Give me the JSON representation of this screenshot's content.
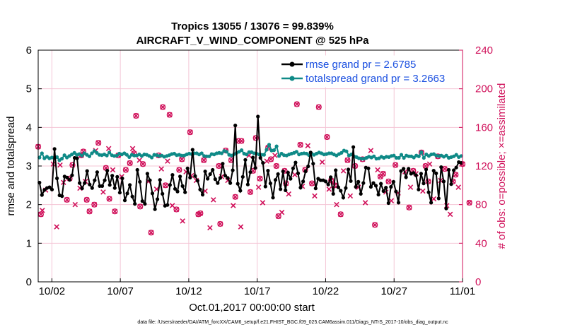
{
  "chart_data": {
    "type": "line",
    "title_line1": "Tropics 13055 / 13076 = 99.839%",
    "title_line2": "AIRCRAFT_V_WIND_COMPONENT @ 525 hPa",
    "xlabel": "Oct.01,2017 00:00:00 start",
    "ylabel_left": "rmse and totalspread",
    "ylabel_right": "# of obs: o=possible; ×=assimilated",
    "footer": "data file: /Users/raeder/DAI/ATM_forcXX/CAM6_setup/f.e21.FHIST_BGC.f09_025.CAM6assim.011/Diags_NTrS_2017-10/obs_diag_output.nc",
    "x_range_days": [
      0,
      31
    ],
    "x_ticks": [
      {
        "day": 1,
        "label": "10/02"
      },
      {
        "day": 6,
        "label": "10/07"
      },
      {
        "day": 11,
        "label": "10/12"
      },
      {
        "day": 16,
        "label": "10/17"
      },
      {
        "day": 21,
        "label": "10/22"
      },
      {
        "day": 26,
        "label": "10/27"
      },
      {
        "day": 31,
        "label": "11/01"
      }
    ],
    "ylim_left": [
      0,
      6
    ],
    "yticks_left": [
      "0",
      "1",
      "2",
      "3",
      "4",
      "5",
      "6"
    ],
    "ylim_right": [
      0,
      240
    ],
    "yticks_right": [
      "0",
      "40",
      "80",
      "120",
      "160",
      "200",
      "240"
    ],
    "colors": {
      "rmse": "#000000",
      "spread": "#0f8a87",
      "obs": "#d0105a",
      "legend_text": "#1a4fe0",
      "grid": "#f4c6d6"
    },
    "series": [
      {
        "name": "rmse grand pr = 2.6785",
        "values": [
          2.57,
          2.25,
          2.38,
          2.43,
          2.45,
          2.39,
          3.44,
          2.68,
          2.24,
          2.22,
          2.73,
          2.7,
          2.64,
          2.76,
          3.21,
          3.2,
          2.56,
          2.42,
          2.56,
          2.87,
          2.52,
          2.43,
          2.63,
          2.84,
          2.48,
          2.48,
          2.63,
          2.88,
          2.51,
          2.75,
          2.43,
          2.72,
          2.31,
          2.68,
          2.11,
          2.29,
          2.51,
          2.21,
          2.02,
          2.9,
          2.59,
          2.09,
          2.02,
          2.8,
          2.63,
          2.29,
          1.88,
          2.14,
          2.64,
          2.28,
          1.97,
          1.99,
          2.51,
          2.77,
          2.41,
          2.34,
          2.73,
          2.48,
          2.32,
          2.94,
          2.7,
          3.42,
          2.74,
          2.62,
          2.39,
          2.26,
          2.86,
          2.67,
          2.79,
          2.9,
          2.66,
          2.56,
          2.69,
          3.06,
          2.75,
          2.69,
          2.56,
          2.89,
          4.05,
          2.54,
          2.36,
          2.72,
          3.16,
          2.52,
          2.84,
          3.22,
          2.95,
          4.28,
          3.21,
          3.08,
          2.47,
          2.88,
          2.55,
          2.18,
          2.64,
          2.79,
          2.4,
          2.86,
          2.37,
          2.83,
          2.67,
          2.94,
          3.09,
          2.81,
          2.44,
          2.6,
          2.86,
          2.99,
          3.35,
          3.06,
          2.42,
          2.67,
          2.63,
          2.63,
          2.6,
          2.52,
          2.71,
          2.28,
          2.89,
          2.45,
          2.36,
          2.18,
          2.43,
          2.91,
          2.61,
          3.49,
          2.46,
          2.59,
          2.28,
          2.56,
          2.96,
          2.94,
          2.46,
          2.56,
          2.49,
          2.26,
          2.54,
          2.35,
          2.44,
          2.04,
          2.46,
          2.59,
          2.34,
          2.05,
          2.87,
          2.93,
          2.71,
          2.93,
          2.8,
          2.82,
          2.76,
          2.39,
          2.8,
          2.55,
          2.91,
          2.32,
          2.05,
          2.88,
          2.81,
          2.16,
          2.97,
          2.6,
          1.9,
          2.9,
          2.53,
          2.89,
          2.96,
          3.1,
          3.08
        ]
      },
      {
        "name": "totalspread grand pr = 3.2663",
        "values": [
          3.22,
          3.33,
          3.2,
          3.24,
          3.2,
          3.22,
          3.21,
          3.23,
          3.15,
          3.19,
          3.28,
          3.22,
          3.26,
          3.3,
          3.34,
          3.29,
          3.31,
          3.27,
          3.33,
          3.29,
          3.25,
          3.33,
          3.39,
          3.34,
          3.29,
          3.28,
          3.3,
          3.27,
          3.35,
          3.28,
          3.26,
          3.27,
          3.32,
          3.3,
          3.33,
          3.29,
          3.23,
          3.29,
          3.27,
          3.27,
          3.3,
          3.26,
          3.3,
          3.29,
          3.26,
          3.22,
          3.29,
          3.28,
          3.26,
          3.27,
          3.24,
          3.26,
          3.28,
          3.31,
          3.32,
          3.28,
          3.29,
          3.27,
          3.27,
          3.3,
          3.32,
          3.31,
          3.33,
          3.33,
          3.3,
          3.33,
          3.26,
          3.25,
          3.25,
          3.31,
          3.3,
          3.33,
          3.34,
          3.33,
          3.39,
          3.37,
          3.29,
          3.27,
          3.31,
          3.34,
          3.37,
          3.41,
          3.32,
          3.3,
          3.36,
          3.36,
          3.33,
          3.32,
          3.3,
          3.29,
          3.29,
          3.42,
          3.55,
          3.4,
          3.41,
          3.51,
          3.26,
          3.32,
          3.28,
          3.27,
          3.3,
          3.32,
          3.34,
          3.37,
          3.3,
          3.32,
          3.33,
          3.32,
          3.28,
          3.32,
          3.29,
          3.32,
          3.35,
          3.33,
          3.3,
          3.31,
          3.33,
          3.33,
          3.3,
          3.27,
          3.31,
          3.34,
          3.4,
          3.38,
          3.27,
          3.3,
          3.25,
          3.23,
          3.2,
          3.19,
          3.19,
          3.21,
          3.24,
          3.22,
          3.25,
          3.19,
          3.2,
          3.24,
          3.21,
          3.24,
          3.23,
          3.26,
          3.27,
          3.21,
          3.21,
          3.29,
          3.21,
          3.27,
          3.25,
          3.25,
          3.22,
          3.27,
          3.25,
          3.36,
          3.21,
          3.3,
          3.26,
          3.3,
          3.31,
          3.27,
          3.26,
          3.27,
          3.24,
          3.27,
          3.21,
          3.23,
          3.25,
          3.29,
          3.23,
          3.26
        ]
      }
    ],
    "obs_possible_and_assimilated": [
      [
        0.0,
        140
      ],
      [
        0.2,
        70
      ],
      [
        2.1,
        85
      ],
      [
        2.3,
        107
      ],
      [
        2.5,
        121
      ],
      [
        3.15,
        131
      ],
      [
        3.3,
        135
      ],
      [
        3.55,
        85
      ],
      [
        3.75,
        73
      ],
      [
        4.1,
        80
      ],
      [
        4.4,
        144
      ],
      [
        4.95,
        118
      ],
      [
        5.2,
        86
      ],
      [
        5.6,
        73
      ],
      [
        5.85,
        131
      ],
      [
        6.4,
        116
      ],
      [
        6.7,
        123
      ],
      [
        7.0,
        133
      ],
      [
        7.15,
        172
      ],
      [
        7.45,
        78
      ],
      [
        7.65,
        122
      ],
      [
        8.25,
        51
      ],
      [
        8.8,
        131
      ],
      [
        9.1,
        181
      ],
      [
        9.3,
        100
      ],
      [
        9.6,
        173
      ],
      [
        10.1,
        75
      ],
      [
        10.3,
        116
      ],
      [
        10.5,
        127
      ],
      [
        11.1,
        155
      ],
      [
        11.7,
        70
      ],
      [
        11.85,
        71
      ],
      [
        12.1,
        126
      ],
      [
        13.2,
        120
      ],
      [
        13.3,
        60
      ],
      [
        13.7,
        136
      ],
      [
        14.1,
        126
      ],
      [
        14.4,
        88
      ],
      [
        14.65,
        146
      ],
      [
        14.85,
        146
      ],
      [
        15.5,
        93
      ],
      [
        15.7,
        115
      ],
      [
        15.9,
        149
      ],
      [
        16.2,
        107
      ],
      [
        16.8,
        139
      ],
      [
        17.0,
        127
      ],
      [
        17.4,
        120
      ],
      [
        17.55,
        68
      ],
      [
        18.0,
        115
      ],
      [
        18.1,
        102
      ],
      [
        18.9,
        184
      ],
      [
        19.15,
        142
      ],
      [
        19.5,
        116
      ],
      [
        20.0,
        102
      ],
      [
        20.5,
        181
      ],
      [
        21.1,
        150
      ],
      [
        21.4,
        105
      ],
      [
        21.65,
        100
      ],
      [
        22.1,
        70
      ],
      [
        22.6,
        126
      ],
      [
        23.15,
        120
      ],
      [
        23.7,
        127
      ],
      [
        24.6,
        59
      ],
      [
        25.0,
        109
      ],
      [
        25.2,
        112
      ],
      [
        25.6,
        104
      ],
      [
        26.1,
        121
      ],
      [
        27.1,
        77
      ],
      [
        27.4,
        115
      ],
      [
        28.0,
        134
      ],
      [
        28.3,
        120
      ],
      [
        28.5,
        104
      ],
      [
        29.2,
        130
      ],
      [
        29.7,
        117
      ],
      [
        30.3,
        104
      ],
      [
        30.5,
        111
      ],
      [
        31.0,
        122
      ],
      [
        31.5,
        82
      ]
    ],
    "obs_assimilated_only": [
      [
        0.3,
        74
      ],
      [
        0.55,
        95
      ],
      [
        1.1,
        122
      ],
      [
        1.35,
        57
      ],
      [
        1.6,
        121
      ],
      [
        1.85,
        103
      ],
      [
        2.7,
        80
      ],
      [
        3.05,
        97
      ],
      [
        3.45,
        104
      ],
      [
        4.2,
        136
      ],
      [
        4.75,
        93
      ],
      [
        5.15,
        138
      ],
      [
        5.45,
        116
      ],
      [
        6.1,
        109
      ],
      [
        6.9,
        138
      ],
      [
        7.4,
        126
      ],
      [
        8.05,
        104
      ],
      [
        8.65,
        96
      ],
      [
        9.0,
        117
      ],
      [
        9.45,
        125
      ],
      [
        9.8,
        79
      ],
      [
        10.55,
        63
      ],
      [
        10.8,
        114
      ],
      [
        11.2,
        110
      ],
      [
        11.55,
        105
      ],
      [
        12.2,
        94
      ],
      [
        12.55,
        56
      ],
      [
        12.8,
        85
      ],
      [
        13.4,
        109
      ],
      [
        13.85,
        105
      ],
      [
        14.25,
        79
      ],
      [
        14.8,
        57
      ],
      [
        15.4,
        131
      ],
      [
        16.1,
        98
      ],
      [
        16.4,
        82
      ],
      [
        16.7,
        125
      ],
      [
        17.3,
        131
      ],
      [
        17.8,
        72
      ],
      [
        18.3,
        91
      ],
      [
        18.75,
        111
      ],
      [
        19.3,
        99
      ],
      [
        19.7,
        141
      ],
      [
        20.2,
        89
      ],
      [
        20.75,
        124
      ],
      [
        21.25,
        96
      ],
      [
        21.8,
        80
      ],
      [
        22.3,
        115
      ],
      [
        22.8,
        89
      ],
      [
        23.4,
        98
      ],
      [
        23.9,
        82
      ],
      [
        24.3,
        136
      ],
      [
        24.8,
        116
      ],
      [
        25.4,
        93
      ],
      [
        25.8,
        84
      ],
      [
        26.3,
        92
      ],
      [
        26.8,
        114
      ],
      [
        27.2,
        98
      ],
      [
        27.6,
        112
      ],
      [
        28.1,
        94
      ],
      [
        28.6,
        122
      ],
      [
        28.9,
        86
      ],
      [
        29.4,
        105
      ],
      [
        29.85,
        79
      ],
      [
        30.1,
        70
      ],
      [
        30.7,
        98
      ]
    ]
  }
}
